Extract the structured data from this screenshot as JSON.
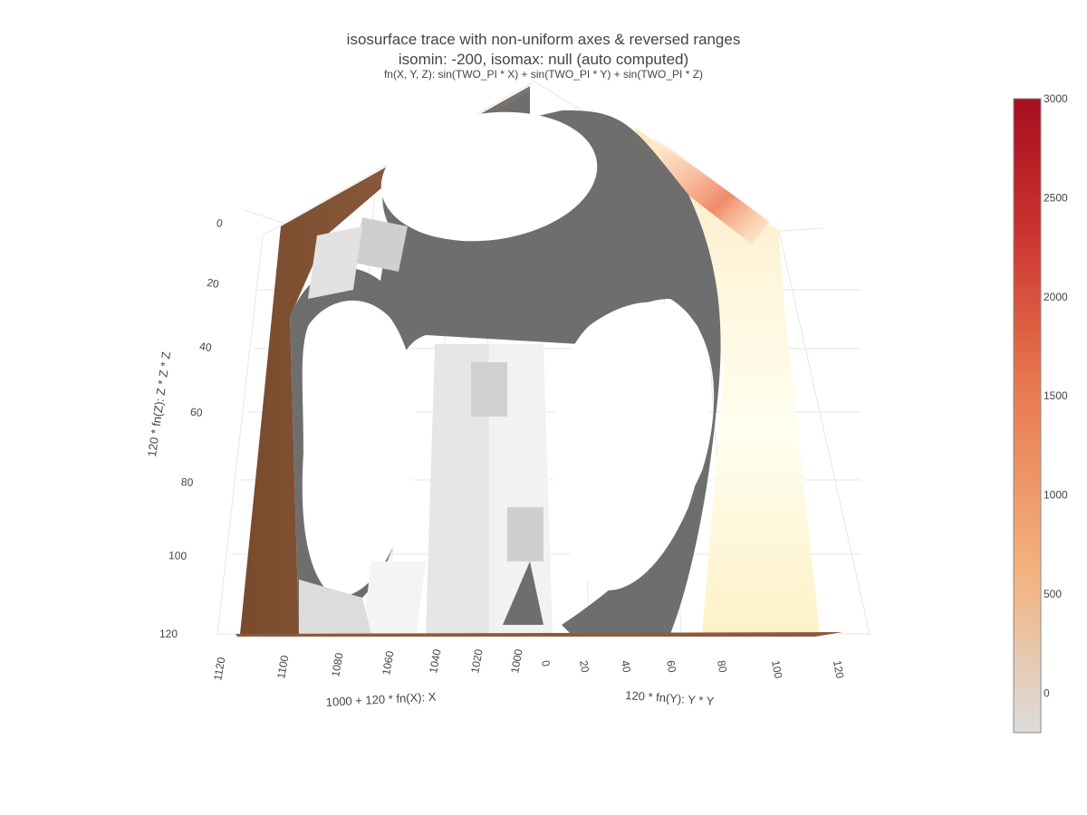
{
  "chart_data": {
    "type": "isosurface",
    "title_line1": "isosurface trace with non-uniform axes & reversed ranges",
    "title_line2": "isomin: -200, isomax: null (auto computed)",
    "title_line3": "fn(X, Y, Z): sin(TWO_PI * X) + sin(TWO_PI * Y) + sin(TWO_PI * Z)",
    "x_axis": {
      "label": "1000 + 120 * fn(X): X",
      "ticks": [
        "1120",
        "1100",
        "1080",
        "1060",
        "1040",
        "1020",
        "1000"
      ]
    },
    "y_axis": {
      "label": "120 * fn(Y): Y * Y",
      "ticks": [
        "0",
        "20",
        "40",
        "60",
        "80",
        "100",
        "120"
      ]
    },
    "z_axis": {
      "label": "120 * fn(Z): Z * Z * Z",
      "ticks": [
        "0",
        "20",
        "40",
        "60",
        "80",
        "100",
        "120"
      ]
    },
    "colorbar": {
      "ticks": [
        "3000",
        "2500",
        "2000",
        "1500",
        "1000",
        "500",
        "0"
      ],
      "values": [
        3000,
        2500,
        2000,
        1500,
        1000,
        500,
        0
      ],
      "range": [
        -200,
        3000
      ],
      "colorscale": [
        "#dcdcdc",
        "#f3b37f",
        "#e8784e",
        "#c9312f",
        "#a50f1f"
      ]
    },
    "isomin": -200,
    "isomax": null,
    "grid": true
  }
}
